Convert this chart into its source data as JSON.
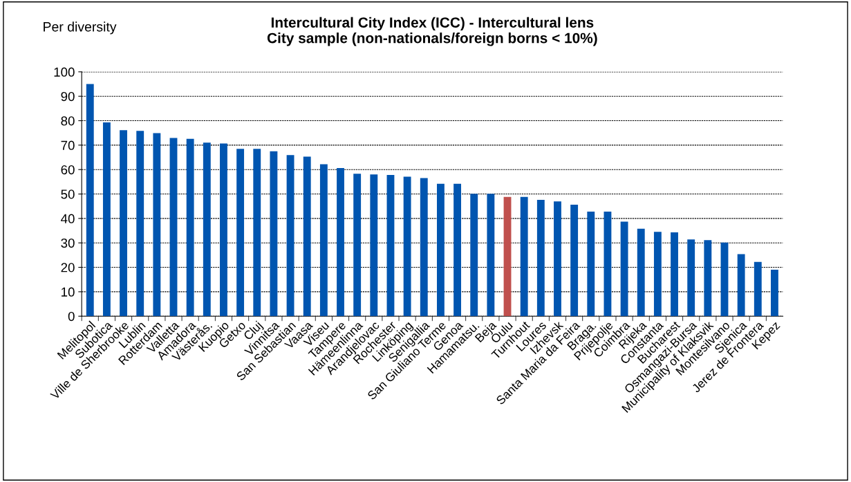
{
  "chart_data": {
    "type": "bar",
    "title": "Intercultural City Index (ICC) - Intercultural lens\nCity sample (non-nationals/foreign borns < 10%)",
    "annotations": [
      "Per diversity"
    ],
    "categories": [
      "Melitopol",
      "Subotica",
      "Ville de Sherbrooke",
      "Lublin",
      "Rotterdam",
      "Valletta",
      "Amadora",
      "Västerås.",
      "Kuopio",
      "Getxo",
      "Cluj",
      "Vinnitsa",
      "San Sebastian",
      "Vaasa",
      "Viseu",
      "Tampere",
      "Hämeenlinna",
      "Arandjelovac",
      "Rochester",
      "Linköping",
      "Senigallia",
      "San Giuliano Terme",
      "Genoa",
      "Hamamatsu.",
      "Beja",
      "Oulu",
      "Turnhout",
      "Loures",
      "Izhevsk",
      "Santa Maria da Feira",
      "Braga.",
      "Prijepolje",
      "Coimbra",
      "Rijeka",
      "Constanta",
      "Bucharest",
      "Osmangazi-Bursa",
      "Municipality of Klaksvik",
      "Montesilvano",
      "Sjenica",
      "Jerez de Frontera",
      "Kepez"
    ],
    "values": [
      95.0,
      79.3,
      76.1,
      75.8,
      74.9,
      72.9,
      72.6,
      71.0,
      70.7,
      68.5,
      68.5,
      67.5,
      65.9,
      65.3,
      62.2,
      60.6,
      58.3,
      58.0,
      57.8,
      57.1,
      56.5,
      54.2,
      54.2,
      50.1,
      50.1,
      48.8,
      48.8,
      47.6,
      47.0,
      45.6,
      42.8,
      42.8,
      38.7,
      35.8,
      34.5,
      34.3,
      31.4,
      31.1,
      30.1,
      25.4,
      22.2,
      19.0
    ],
    "colors": [
      "#0055b0",
      "#0055b0",
      "#0055b0",
      "#0055b0",
      "#0055b0",
      "#0055b0",
      "#0055b0",
      "#0055b0",
      "#0055b0",
      "#0055b0",
      "#0055b0",
      "#0055b0",
      "#0055b0",
      "#0055b0",
      "#0055b0",
      "#0055b0",
      "#0055b0",
      "#0055b0",
      "#0055b0",
      "#0055b0",
      "#0055b0",
      "#0055b0",
      "#0055b0",
      "#0055b0",
      "#0055b0",
      "#c0504d",
      "#0055b0",
      "#0055b0",
      "#0055b0",
      "#0055b0",
      "#0055b0",
      "#0055b0",
      "#0055b0",
      "#0055b0",
      "#0055b0",
      "#0055b0",
      "#0055b0",
      "#0055b0",
      "#0055b0",
      "#0055b0",
      "#0055b0",
      "#0055b0"
    ],
    "ylim": [
      0,
      100
    ],
    "yticks": [
      0,
      10,
      20,
      30,
      40,
      50,
      60,
      70,
      80,
      90,
      100
    ],
    "grid": "y"
  }
}
